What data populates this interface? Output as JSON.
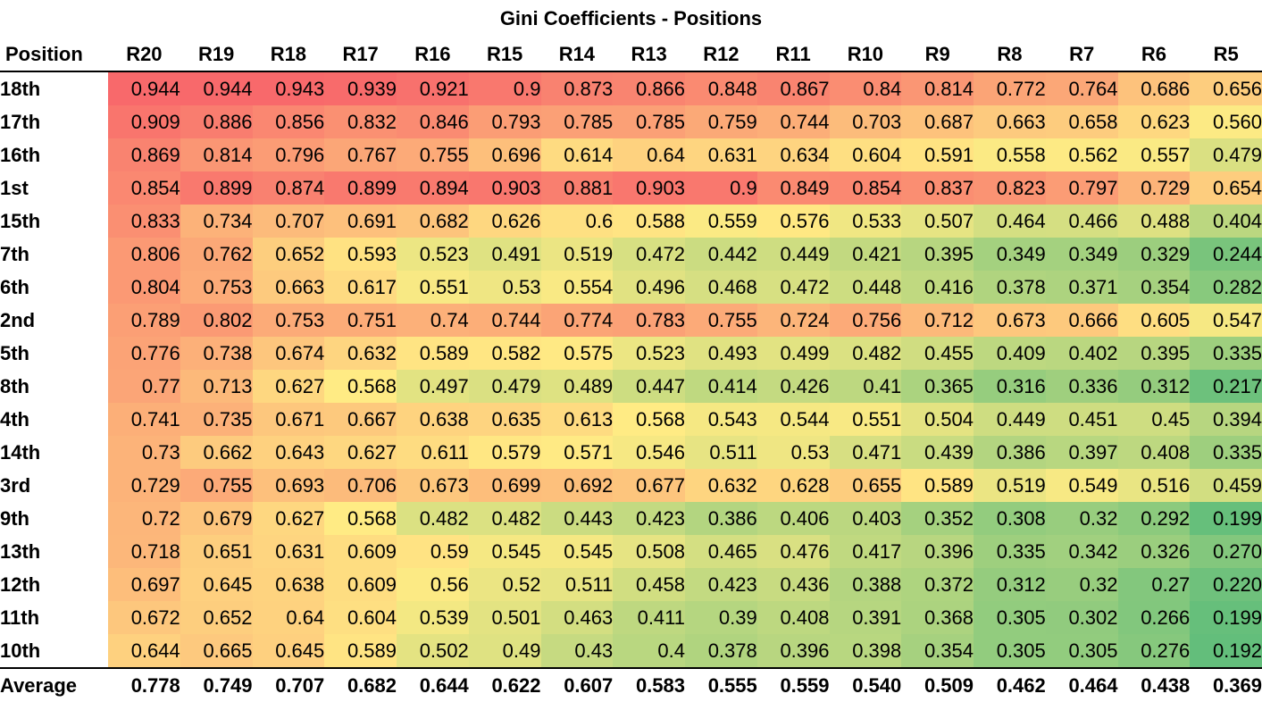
{
  "chart_data": {
    "type": "table",
    "title": "Gini Coefficients - Positions",
    "row_header_label": "Position",
    "columns": [
      "R20",
      "R19",
      "R18",
      "R17",
      "R16",
      "R15",
      "R14",
      "R13",
      "R12",
      "R11",
      "R10",
      "R9",
      "R8",
      "R7",
      "R6",
      "R5"
    ],
    "rows": [
      {
        "label": "18th",
        "values": [
          "0.944",
          "0.944",
          "0.943",
          "0.939",
          "0.921",
          "0.9",
          "0.873",
          "0.866",
          "0.848",
          "0.867",
          "0.84",
          "0.814",
          "0.772",
          "0.764",
          "0.686",
          "0.656"
        ]
      },
      {
        "label": "17th",
        "values": [
          "0.909",
          "0.886",
          "0.856",
          "0.832",
          "0.846",
          "0.793",
          "0.785",
          "0.785",
          "0.759",
          "0.744",
          "0.703",
          "0.687",
          "0.663",
          "0.658",
          "0.623",
          "0.560"
        ]
      },
      {
        "label": "16th",
        "values": [
          "0.869",
          "0.814",
          "0.796",
          "0.767",
          "0.755",
          "0.696",
          "0.614",
          "0.64",
          "0.631",
          "0.634",
          "0.604",
          "0.591",
          "0.558",
          "0.562",
          "0.557",
          "0.479"
        ]
      },
      {
        "label": "1st",
        "values": [
          "0.854",
          "0.899",
          "0.874",
          "0.899",
          "0.894",
          "0.903",
          "0.881",
          "0.903",
          "0.9",
          "0.849",
          "0.854",
          "0.837",
          "0.823",
          "0.797",
          "0.729",
          "0.654"
        ]
      },
      {
        "label": "15th",
        "values": [
          "0.833",
          "0.734",
          "0.707",
          "0.691",
          "0.682",
          "0.626",
          "0.6",
          "0.588",
          "0.559",
          "0.576",
          "0.533",
          "0.507",
          "0.464",
          "0.466",
          "0.488",
          "0.404"
        ]
      },
      {
        "label": "7th",
        "values": [
          "0.806",
          "0.762",
          "0.652",
          "0.593",
          "0.523",
          "0.491",
          "0.519",
          "0.472",
          "0.442",
          "0.449",
          "0.421",
          "0.395",
          "0.349",
          "0.349",
          "0.329",
          "0.244"
        ]
      },
      {
        "label": "6th",
        "values": [
          "0.804",
          "0.753",
          "0.663",
          "0.617",
          "0.551",
          "0.53",
          "0.554",
          "0.496",
          "0.468",
          "0.472",
          "0.448",
          "0.416",
          "0.378",
          "0.371",
          "0.354",
          "0.282"
        ]
      },
      {
        "label": "2nd",
        "values": [
          "0.789",
          "0.802",
          "0.753",
          "0.751",
          "0.74",
          "0.744",
          "0.774",
          "0.783",
          "0.755",
          "0.724",
          "0.756",
          "0.712",
          "0.673",
          "0.666",
          "0.605",
          "0.547"
        ]
      },
      {
        "label": "5th",
        "values": [
          "0.776",
          "0.738",
          "0.674",
          "0.632",
          "0.589",
          "0.582",
          "0.575",
          "0.523",
          "0.493",
          "0.499",
          "0.482",
          "0.455",
          "0.409",
          "0.402",
          "0.395",
          "0.335"
        ]
      },
      {
        "label": "8th",
        "values": [
          "0.77",
          "0.713",
          "0.627",
          "0.568",
          "0.497",
          "0.479",
          "0.489",
          "0.447",
          "0.414",
          "0.426",
          "0.41",
          "0.365",
          "0.316",
          "0.336",
          "0.312",
          "0.217"
        ]
      },
      {
        "label": "4th",
        "values": [
          "0.741",
          "0.735",
          "0.671",
          "0.667",
          "0.638",
          "0.635",
          "0.613",
          "0.568",
          "0.543",
          "0.544",
          "0.551",
          "0.504",
          "0.449",
          "0.451",
          "0.45",
          "0.394"
        ]
      },
      {
        "label": "14th",
        "values": [
          "0.73",
          "0.662",
          "0.643",
          "0.627",
          "0.611",
          "0.579",
          "0.571",
          "0.546",
          "0.511",
          "0.53",
          "0.471",
          "0.439",
          "0.386",
          "0.397",
          "0.408",
          "0.335"
        ]
      },
      {
        "label": "3rd",
        "values": [
          "0.729",
          "0.755",
          "0.693",
          "0.706",
          "0.673",
          "0.699",
          "0.692",
          "0.677",
          "0.632",
          "0.628",
          "0.655",
          "0.589",
          "0.519",
          "0.549",
          "0.516",
          "0.459"
        ]
      },
      {
        "label": "9th",
        "values": [
          "0.72",
          "0.679",
          "0.627",
          "0.568",
          "0.482",
          "0.482",
          "0.443",
          "0.423",
          "0.386",
          "0.406",
          "0.403",
          "0.352",
          "0.308",
          "0.32",
          "0.292",
          "0.199"
        ]
      },
      {
        "label": "13th",
        "values": [
          "0.718",
          "0.651",
          "0.631",
          "0.609",
          "0.59",
          "0.545",
          "0.545",
          "0.508",
          "0.465",
          "0.476",
          "0.417",
          "0.396",
          "0.335",
          "0.342",
          "0.326",
          "0.270"
        ]
      },
      {
        "label": "12th",
        "values": [
          "0.697",
          "0.645",
          "0.638",
          "0.609",
          "0.56",
          "0.52",
          "0.511",
          "0.458",
          "0.423",
          "0.436",
          "0.388",
          "0.372",
          "0.312",
          "0.32",
          "0.27",
          "0.220"
        ]
      },
      {
        "label": "11th",
        "values": [
          "0.672",
          "0.652",
          "0.64",
          "0.604",
          "0.539",
          "0.501",
          "0.463",
          "0.411",
          "0.39",
          "0.408",
          "0.391",
          "0.368",
          "0.305",
          "0.302",
          "0.266",
          "0.199"
        ]
      },
      {
        "label": "10th",
        "values": [
          "0.644",
          "0.665",
          "0.645",
          "0.589",
          "0.502",
          "0.49",
          "0.43",
          "0.4",
          "0.378",
          "0.396",
          "0.398",
          "0.354",
          "0.305",
          "0.305",
          "0.276",
          "0.192"
        ]
      }
    ],
    "average": {
      "label": "Average",
      "values": [
        "0.778",
        "0.749",
        "0.707",
        "0.682",
        "0.644",
        "0.622",
        "0.607",
        "0.583",
        "0.555",
        "0.559",
        "0.540",
        "0.509",
        "0.462",
        "0.464",
        "0.438",
        "0.369"
      ]
    },
    "color_scale": {
      "low": "#63be7b",
      "mid": "#ffeb84",
      "high": "#f8696b",
      "low_value": 0.192,
      "high_value": 0.944
    }
  }
}
